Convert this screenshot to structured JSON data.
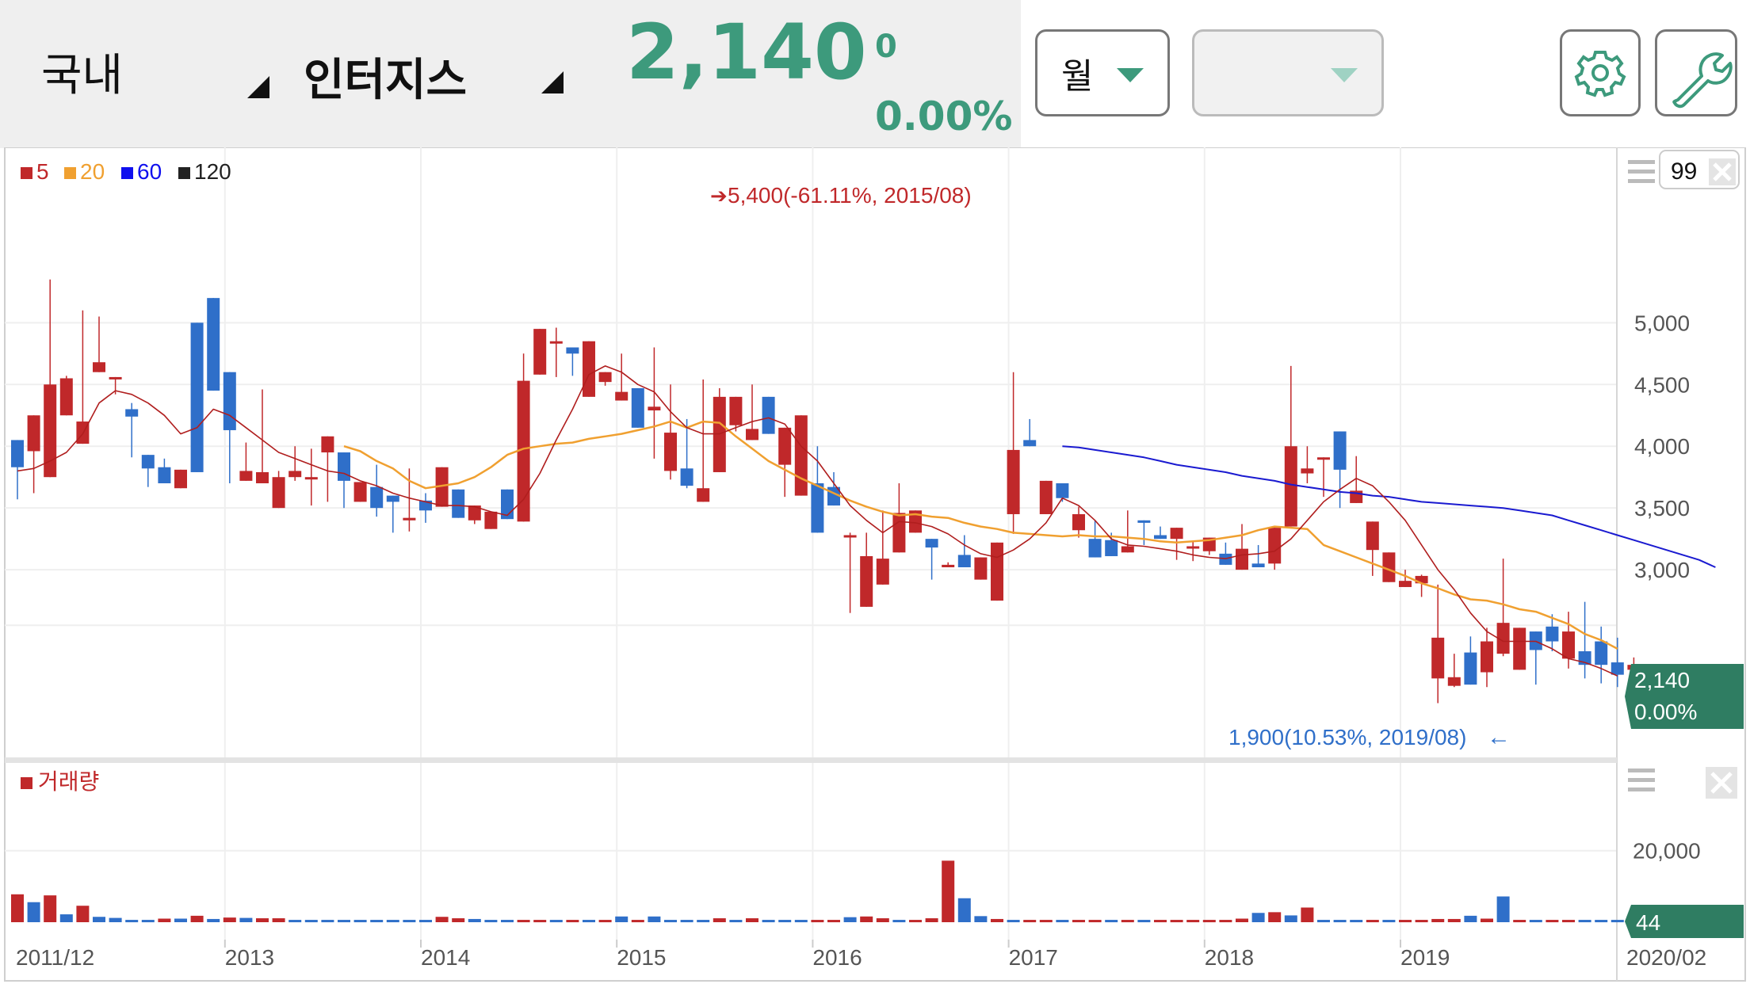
{
  "header": {
    "market": "국내",
    "stock_name": "인터지스",
    "price": "2,140",
    "change": "0",
    "change_pct": "0.00%",
    "period": "월",
    "secondary_select": "",
    "accent_color": "#3d9a7c"
  },
  "icons": {
    "settings": "gear-icon",
    "tools": "wrench-icon",
    "menu": "hamburger-icon",
    "close": "close-icon"
  },
  "chart_data": {
    "type": "candlestick",
    "period": "monthly",
    "zoom_value": "99",
    "legend": [
      {
        "label": "5",
        "color": "#c0282a"
      },
      {
        "label": "20",
        "color": "#f0a030"
      },
      {
        "label": "60",
        "color": "#1010ee"
      },
      {
        "label": "120",
        "color": "#222222"
      }
    ],
    "volume_legend": "거래량",
    "ylim": [
      1750,
      5650
    ],
    "y_ticks": [
      3000,
      3500,
      4000,
      4500,
      5000
    ],
    "y_tick_labels": [
      "3,000",
      "3,500",
      "4,000",
      "4,500",
      "5,000"
    ],
    "volume_ylim": [
      0,
      35000
    ],
    "volume_ticks": [
      20000
    ],
    "volume_tick_labels": [
      "20,000"
    ],
    "x_labels": [
      {
        "text": "2011/12",
        "idx": 0
      },
      {
        "text": "2013",
        "idx": 13
      },
      {
        "text": "2014",
        "idx": 25
      },
      {
        "text": "2015",
        "idx": 37
      },
      {
        "text": "2016",
        "idx": 49
      },
      {
        "text": "2017",
        "idx": 61
      },
      {
        "text": "2018",
        "idx": 73
      },
      {
        "text": "2019",
        "idx": 85
      },
      {
        "text": "2020/02",
        "idx": 98
      }
    ],
    "max_annotation": "5,400(-61.11%, 2015/08)",
    "min_annotation": "1,900(10.53%, 2019/08)",
    "last_price_tag": "2,140",
    "last_change_tag": "0.00%",
    "last_volume_tag": "44",
    "candles": [
      [
        4050,
        3830,
        3750,
        3570
      ],
      [
        3960,
        4250,
        3620,
        3650
      ],
      [
        3750,
        4500,
        5350,
        4520
      ],
      [
        4250,
        4550,
        4570,
        4500
      ],
      [
        4020,
        4200,
        5100,
        4850
      ],
      [
        4600,
        4680,
        5050,
        4610
      ],
      [
        4550,
        4560,
        4420,
        4470
      ],
      [
        4300,
        4240,
        4350,
        3910
      ],
      [
        3930,
        3820,
        3750,
        3670
      ],
      [
        3830,
        3700,
        3900,
        3810
      ],
      [
        3660,
        3810,
        3750,
        3700
      ],
      [
        5000,
        3790,
        5000,
        5000
      ],
      [
        5200,
        4450,
        5000,
        4650
      ],
      [
        4600,
        4130,
        3950,
        3700
      ],
      [
        3720,
        3800,
        4030,
        3960
      ],
      [
        3700,
        3790,
        4460,
        3740
      ],
      [
        3500,
        3750,
        3800,
        3680
      ],
      [
        3750,
        3800,
        4000,
        3720
      ],
      [
        3750,
        3750,
        3980,
        3520
      ],
      [
        3950,
        4080,
        3970,
        3550
      ],
      [
        3950,
        3720,
        3620,
        3500
      ],
      [
        3550,
        3710,
        3670,
        3680
      ],
      [
        3670,
        3500,
        3850,
        3430
      ],
      [
        3600,
        3550,
        3350,
        3300
      ],
      [
        3400,
        3420,
        3820,
        3310
      ],
      [
        3560,
        3480,
        3620,
        3380
      ],
      [
        3510,
        3830,
        3570,
        3590
      ],
      [
        3650,
        3420,
        3590,
        3470
      ],
      [
        3400,
        3520,
        3370,
        3440
      ],
      [
        3330,
        3470,
        3380,
        3330
      ],
      [
        3650,
        3410,
        3640,
        3460
      ],
      [
        3390,
        4530,
        4750,
        4530
      ],
      [
        4580,
        4950,
        4800,
        4700
      ],
      [
        4850,
        4850,
        4960,
        4560
      ],
      [
        4800,
        4750,
        4570,
        4600
      ],
      [
        4400,
        4850,
        4590,
        4530
      ],
      [
        4520,
        4600,
        4600,
        4490
      ],
      [
        4370,
        4440,
        4750,
        4420
      ],
      [
        4470,
        4150,
        4270,
        4210
      ],
      [
        4290,
        4320,
        4800,
        3900
      ],
      [
        3800,
        4110,
        4500,
        3730
      ],
      [
        3820,
        3680,
        4220,
        3660
      ],
      [
        3550,
        3660,
        4540,
        3750
      ],
      [
        3790,
        4400,
        4470,
        4130
      ],
      [
        4170,
        4400,
        4120,
        4200
      ],
      [
        4050,
        4140,
        4500,
        4050
      ],
      [
        4400,
        4100,
        4300,
        4200
      ],
      [
        3850,
        4150,
        3650,
        3590
      ],
      [
        3600,
        4250,
        3950,
        3640
      ],
      [
        3700,
        3300,
        4000,
        3830
      ],
      [
        3670,
        3520,
        3520,
        3790
      ],
      [
        3270,
        3280,
        2650,
        3300
      ],
      [
        2700,
        3110,
        3020,
        3300
      ],
      [
        2880,
        3090,
        3480,
        3200
      ],
      [
        3140,
        3460,
        3660,
        3700
      ],
      [
        3300,
        3480,
        3470,
        3300
      ],
      [
        3250,
        3180,
        3130,
        2920
      ],
      [
        3020,
        3040,
        3060,
        3050
      ],
      [
        3120,
        3020,
        3280,
        3020
      ],
      [
        2920,
        3100,
        3050,
        3100
      ],
      [
        2750,
        3220,
        3030,
        3100
      ],
      [
        3450,
        3970,
        3290,
        4600
      ],
      [
        4050,
        4000,
        4220,
        4000
      ],
      [
        3450,
        3720,
        3690,
        3710
      ],
      [
        3700,
        3580,
        3650,
        3550
      ],
      [
        3320,
        3450,
        3510,
        3260
      ],
      [
        3250,
        3100,
        3400,
        3120
      ],
      [
        3240,
        3110,
        3300,
        3160
      ],
      [
        3140,
        3190,
        3480,
        3260
      ],
      [
        3400,
        3380,
        3260,
        3200
      ],
      [
        3280,
        3250,
        3350,
        3320
      ],
      [
        3250,
        3340,
        3240,
        3080
      ],
      [
        3190,
        3190,
        3230,
        3070
      ],
      [
        3150,
        3260,
        3140,
        3120
      ],
      [
        3130,
        3040,
        3220,
        3170
      ],
      [
        3000,
        3170,
        3370,
        3300
      ],
      [
        3050,
        3020,
        3200,
        3120
      ],
      [
        3050,
        3340,
        3300,
        3000
      ],
      [
        3350,
        4000,
        4650,
        3850
      ],
      [
        3780,
        3820,
        4000,
        3700
      ],
      [
        3900,
        3910,
        3760,
        3590
      ],
      [
        4120,
        3810,
        4090,
        3500
      ],
      [
        3540,
        3640,
        3920,
        3660
      ],
      [
        3160,
        3390,
        3330,
        2950
      ],
      [
        2900,
        3140,
        2950,
        2950
      ],
      [
        2860,
        2910,
        2980,
        3000
      ],
      [
        2890,
        2950,
        2960,
        2780
      ],
      [
        2120,
        2450,
        2880,
        1920
      ],
      [
        2060,
        2130,
        2320,
        2050
      ],
      [
        2330,
        2070,
        2460,
        2080
      ],
      [
        2170,
        2420,
        2530,
        2050
      ],
      [
        2320,
        2570,
        3090,
        2300
      ],
      [
        2190,
        2530,
        2520,
        2220
      ],
      [
        2500,
        2350,
        2460,
        2070
      ],
      [
        2540,
        2420,
        2640,
        2340
      ],
      [
        2280,
        2500,
        2660,
        2200
      ],
      [
        2340,
        2230,
        2740,
        2120
      ],
      [
        2420,
        2230,
        2540,
        2080
      ],
      [
        2250,
        2150,
        2450,
        2050
      ],
      [
        2190,
        2230,
        2290,
        2050
      ]
    ],
    "ma5": [
      3800,
      3820,
      3880,
      3950,
      4100,
      4350,
      4450,
      4420,
      4350,
      4250,
      4100,
      4150,
      4300,
      4250,
      4150,
      4050,
      3950,
      3900,
      3850,
      3800,
      3780,
      3720,
      3680,
      3620,
      3580,
      3550,
      3520,
      3520,
      3510,
      3470,
      3440,
      3570,
      3780,
      4050,
      4300,
      4580,
      4650,
      4600,
      4500,
      4440,
      4280,
      4150,
      4100,
      4100,
      4150,
      4200,
      4230,
      4180,
      4000,
      3880,
      3700,
      3520,
      3400,
      3300,
      3390,
      3380,
      3350,
      3290,
      3200,
      3130,
      3100,
      3160,
      3250,
      3380,
      3580,
      3520,
      3400,
      3250,
      3200,
      3190,
      3170,
      3150,
      3120,
      3100,
      3090,
      3120,
      3130,
      3150,
      3250,
      3400,
      3550,
      3650,
      3740,
      3680,
      3550,
      3400,
      3200,
      3000,
      2840,
      2650,
      2500,
      2420,
      2420,
      2420,
      2360,
      2280,
      2250,
      2200,
      2140
    ],
    "ma20_start": 20,
    "ma20": [
      4000,
      3960,
      3880,
      3820,
      3720,
      3660,
      3680,
      3700,
      3750,
      3830,
      3930,
      3980,
      4000,
      4020,
      4030,
      4060,
      4080,
      4100,
      4130,
      4160,
      4200,
      4150,
      4200,
      4190,
      4080,
      3980,
      3880,
      3810,
      3740,
      3680,
      3620,
      3560,
      3510,
      3470,
      3440,
      3450,
      3430,
      3420,
      3380,
      3350,
      3330,
      3300,
      3290,
      3280,
      3270,
      3280,
      3270,
      3270,
      3260,
      3250,
      3230,
      3220,
      3230,
      3240,
      3260,
      3280,
      3320,
      3350,
      3340,
      3330,
      3200,
      3150,
      3100,
      3050,
      3000,
      2950,
      2890,
      2850,
      2800,
      2760,
      2750,
      2720,
      2680,
      2660,
      2610,
      2560,
      2480,
      2430,
      2360
    ],
    "ma60_start": 64,
    "ma60": [
      4000,
      3990,
      3970,
      3950,
      3930,
      3910,
      3880,
      3850,
      3830,
      3810,
      3790,
      3760,
      3740,
      3720,
      3690,
      3670,
      3650,
      3630,
      3620,
      3600,
      3590,
      3570,
      3550,
      3540,
      3530,
      3520,
      3510,
      3500,
      3480,
      3460,
      3440,
      3400,
      3360,
      3320,
      3280,
      3240,
      3200,
      3160,
      3120,
      3080,
      3020
    ],
    "volume": [
      7800,
      5600,
      7500,
      2200,
      4600,
      1500,
      1200,
      650,
      650,
      1000,
      1000,
      1800,
      900,
      1300,
      1200,
      1100,
      1100,
      650,
      650,
      650,
      650,
      650,
      650,
      650,
      650,
      650,
      1500,
      1100,
      900,
      650,
      650,
      650,
      650,
      650,
      650,
      650,
      650,
      1600,
      650,
      1600,
      650,
      650,
      650,
      1100,
      650,
      1100,
      650,
      650,
      650,
      650,
      650,
      1400,
      1600,
      1100,
      650,
      650,
      1100,
      17200,
      6700,
      1700,
      900,
      650,
      650,
      650,
      650,
      650,
      650,
      650,
      650,
      650,
      650,
      650,
      650,
      650,
      650,
      1000,
      2600,
      2800,
      1900,
      4100,
      650,
      650,
      650,
      650,
      650,
      650,
      650,
      900,
      900,
      1800,
      1000,
      7200,
      650,
      650,
      650,
      650,
      650,
      650,
      650
    ],
    "volume_colors_up": [
      1,
      0,
      1,
      0,
      1,
      0,
      0,
      0,
      0,
      1,
      0,
      1,
      0,
      1,
      0,
      1,
      1,
      0,
      0,
      0,
      0,
      0,
      0,
      0,
      0,
      0,
      1,
      1,
      0,
      0,
      0,
      1,
      1,
      0,
      1,
      0,
      1,
      0,
      1,
      0,
      0,
      0,
      0,
      1,
      0,
      1,
      0,
      0,
      0,
      1,
      1,
      0,
      1,
      1,
      0,
      1,
      1,
      1,
      0,
      0,
      1,
      0,
      1,
      1,
      0,
      1,
      1,
      0,
      1,
      0,
      1,
      1,
      1,
      1,
      1,
      1,
      0,
      1,
      0,
      1,
      0,
      0,
      0,
      1,
      0,
      1,
      1,
      1,
      1,
      0,
      1,
      0,
      1,
      0,
      1,
      1,
      0,
      0,
      0
    ]
  }
}
